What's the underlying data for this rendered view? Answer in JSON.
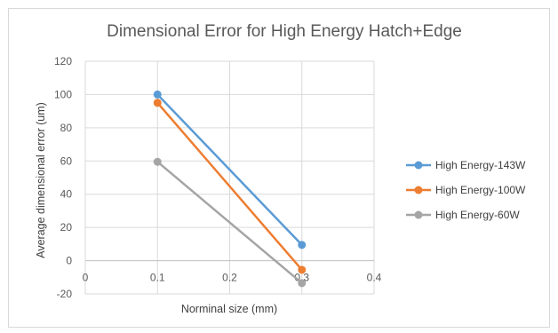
{
  "chart_data": {
    "type": "scatter",
    "title": "Dimensional Error for High Energy Hatch+Edge",
    "xlabel": "Norminal size (mm)",
    "ylabel": "Average dimensional error (um)",
    "xlim": [
      0,
      0.4
    ],
    "ylim": [
      -20,
      120
    ],
    "x_ticks": [
      "0",
      "0.1",
      "0.2",
      "0.3",
      "0.4"
    ],
    "y_ticks": [
      "-20",
      "0",
      "20",
      "40",
      "60",
      "80",
      "100",
      "120"
    ],
    "grid": true,
    "legend_position": "right",
    "series": [
      {
        "name": "High Energy-143W",
        "color": "#5b9bd5",
        "x": [
          0.1,
          0.3
        ],
        "y": [
          100,
          9.5
        ]
      },
      {
        "name": "High Energy-100W",
        "color": "#ed7d31",
        "x": [
          0.1,
          0.3
        ],
        "y": [
          95,
          -5.5
        ]
      },
      {
        "name": "High Energy-60W",
        "color": "#a5a5a5",
        "x": [
          0.1,
          0.3
        ],
        "y": [
          59.5,
          -13.5
        ]
      }
    ]
  }
}
